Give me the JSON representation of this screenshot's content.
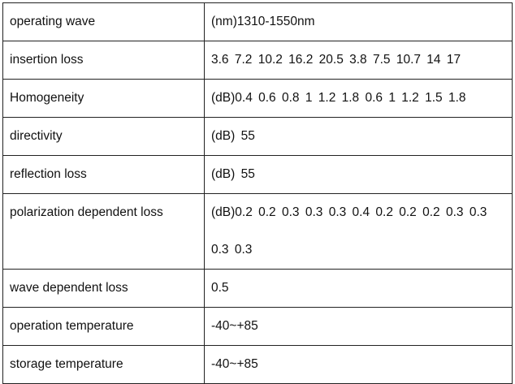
{
  "table": {
    "rows": [
      [
        "operating wave",
        "(nm)1310-1550nm"
      ],
      [
        "insertion loss",
        "3.6 7.2 10.2 16.2 20.5 3.8 7.5 10.7 14 17"
      ],
      [
        "Homogeneity",
        "(dB)0.4 0.6 0.8 1 1.2 1.8 0.6 1 1.2 1.5 1.8"
      ],
      [
        "directivity",
        "(dB) 55"
      ],
      [
        "reflection loss",
        "(dB) 55"
      ],
      [
        "polarization dependent loss",
        "(dB)0.2 0.2 0.3 0.3 0.3 0.4 0.2 0.2 0.2 0.3 0.3 0.3 0.3"
      ],
      [
        "wave dependent loss",
        "0.5"
      ],
      [
        "operation temperature",
        "-40~+85"
      ],
      [
        "storage temperature",
        "-40~+85"
      ]
    ]
  }
}
